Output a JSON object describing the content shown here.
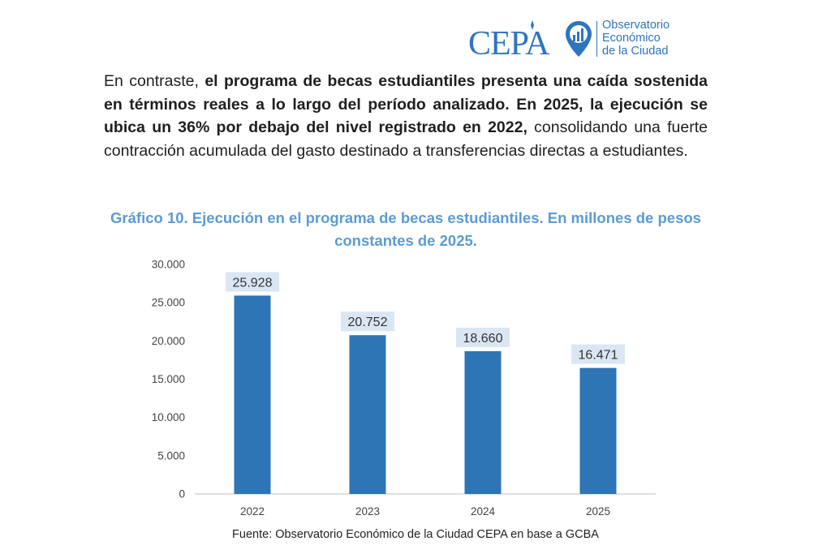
{
  "header": {
    "cepa_logo_text": "CEPA",
    "observatorio_line1": "Observatorio",
    "observatorio_line2": "Económico",
    "observatorio_line3": "de la Ciudad"
  },
  "paragraph": {
    "part1": "En contraste, ",
    "bold1": "el programa de becas estudiantiles presenta una caída sostenida en términos reales a lo largo del período analizado. En 2025, la ejecución se ubica un 36% por debajo del nivel registrado en 2022,",
    "part2": " consolidando una fuerte contracción acumulada del gasto destinado a transferencias directas a estudiantes."
  },
  "chart_data": {
    "type": "bar",
    "title": "Gráfico 10. Ejecución en el programa de becas estudiantiles. En millones de pesos constantes de 2025.",
    "categories": [
      "2022",
      "2023",
      "2024",
      "2025"
    ],
    "values": [
      25928,
      20752,
      18660,
      16471
    ],
    "value_labels": [
      "25.928",
      "20.752",
      "18.660",
      "16.471"
    ],
    "y_ticks": [
      0,
      5000,
      10000,
      15000,
      20000,
      25000,
      30000
    ],
    "y_tick_labels": [
      "0",
      "5.000",
      "10.000",
      "15.000",
      "20.000",
      "25.000",
      "30.000"
    ],
    "ylim": [
      0,
      30000
    ],
    "xlabel": "",
    "ylabel": "",
    "grid": false,
    "legend": "none",
    "bar_color": "#2e75b6",
    "label_bg_color": "#dbe6f4"
  },
  "source": "Fuente: Observatorio Económico de la Ciudad CEPA en base a GCBA"
}
